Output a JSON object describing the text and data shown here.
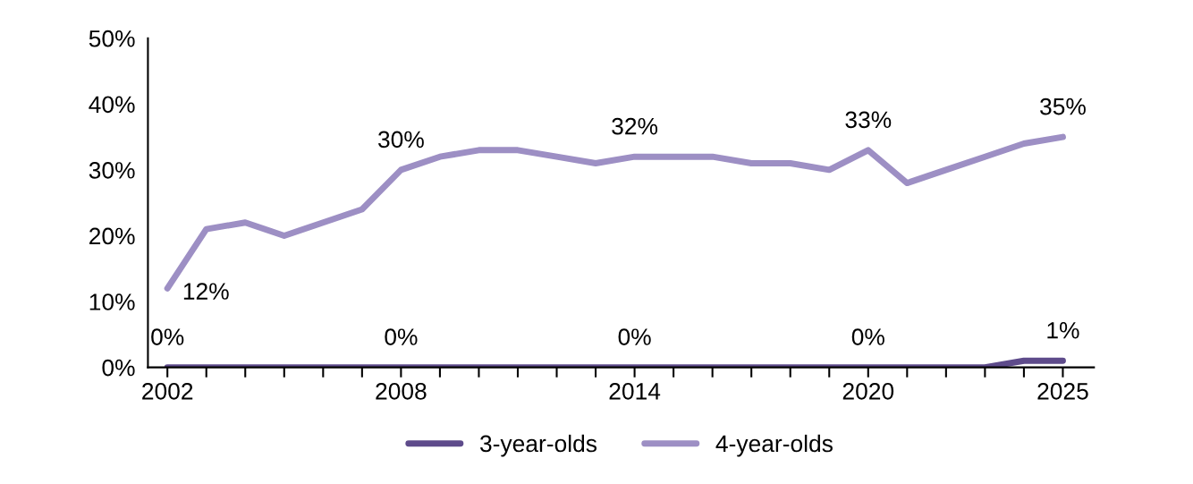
{
  "chart_data": {
    "type": "line",
    "x": [
      2002,
      2003,
      2004,
      2005,
      2006,
      2007,
      2008,
      2009,
      2010,
      2011,
      2012,
      2013,
      2014,
      2015,
      2016,
      2017,
      2018,
      2019,
      2020,
      2021,
      2022,
      2023,
      2024,
      2025
    ],
    "series": [
      {
        "name": "3-year-olds",
        "color": "#5e4b8b",
        "values": [
          0,
          0,
          0,
          0,
          0,
          0,
          0,
          0,
          0,
          0,
          0,
          0,
          0,
          0,
          0,
          0,
          0,
          0,
          0,
          0,
          0,
          0,
          1,
          1
        ],
        "value_labels": [
          "0%",
          null,
          null,
          null,
          null,
          null,
          "0%",
          null,
          null,
          null,
          null,
          null,
          "0%",
          null,
          null,
          null,
          null,
          null,
          "0%",
          null,
          null,
          null,
          null,
          "1%"
        ]
      },
      {
        "name": "4-year-olds",
        "color": "#9d8fc4",
        "values": [
          12,
          21,
          22,
          20,
          22,
          24,
          30,
          32,
          33,
          33,
          32,
          31,
          32,
          32,
          32,
          31,
          31,
          30,
          33,
          28,
          30,
          32,
          34,
          35
        ],
        "value_labels": [
          "12%",
          null,
          null,
          null,
          null,
          null,
          "30%",
          null,
          null,
          null,
          null,
          null,
          "32%",
          null,
          null,
          null,
          null,
          null,
          "33%",
          null,
          null,
          null,
          null,
          "35%"
        ]
      }
    ],
    "xlim": [
      2001.5,
      2025.8
    ],
    "xticks": [
      {
        "value": 2002,
        "label": "2002"
      },
      {
        "value": 2003,
        "label": null
      },
      {
        "value": 2004,
        "label": null
      },
      {
        "value": 2005,
        "label": null
      },
      {
        "value": 2006,
        "label": null
      },
      {
        "value": 2007,
        "label": null
      },
      {
        "value": 2008,
        "label": "2008"
      },
      {
        "value": 2009,
        "label": null
      },
      {
        "value": 2010,
        "label": null
      },
      {
        "value": 2011,
        "label": null
      },
      {
        "value": 2012,
        "label": null
      },
      {
        "value": 2013,
        "label": null
      },
      {
        "value": 2014,
        "label": "2014"
      },
      {
        "value": 2015,
        "label": null
      },
      {
        "value": 2016,
        "label": null
      },
      {
        "value": 2017,
        "label": null
      },
      {
        "value": 2018,
        "label": null
      },
      {
        "value": 2019,
        "label": null
      },
      {
        "value": 2020,
        "label": "2020"
      },
      {
        "value": 2021,
        "label": null
      },
      {
        "value": 2022,
        "label": null
      },
      {
        "value": 2023,
        "label": null
      },
      {
        "value": 2024,
        "label": null
      },
      {
        "value": 2025,
        "label": "2025"
      }
    ],
    "ylim": [
      0,
      50
    ],
    "yticks": [
      {
        "value": 0,
        "label": "0%"
      },
      {
        "value": 10,
        "label": "10%"
      },
      {
        "value": 20,
        "label": "20%"
      },
      {
        "value": 30,
        "label": "30%"
      },
      {
        "value": 40,
        "label": "40%"
      },
      {
        "value": 50,
        "label": "50%"
      }
    ],
    "grid": false,
    "legend": "bottom",
    "marker": "none",
    "line_style": "solid"
  }
}
